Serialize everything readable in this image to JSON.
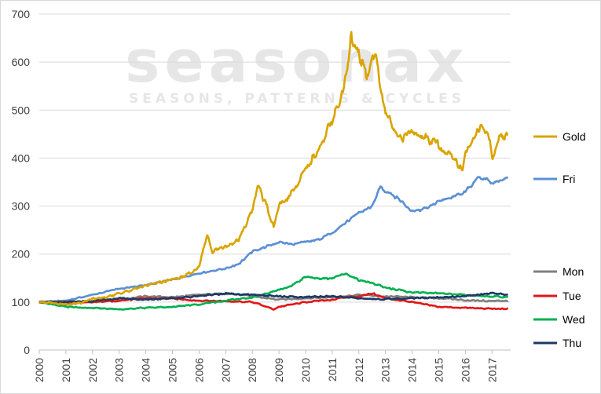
{
  "watermark": {
    "brand": "seasonax",
    "tagline": "SEASONS, PATTERNS & CYCLES"
  },
  "chart_data": {
    "type": "line",
    "title": "",
    "xlabel": "",
    "ylabel": "",
    "ylim": [
      0,
      700
    ],
    "yticks": [
      0,
      100,
      200,
      300,
      400,
      500,
      600,
      700
    ],
    "xlim": [
      2000,
      2017.7
    ],
    "xticks": [
      "2000",
      "2001",
      "2002",
      "2003",
      "2004",
      "2005",
      "2006",
      "2007",
      "2008",
      "2009",
      "2010",
      "2011",
      "2012",
      "2013",
      "2014",
      "2015",
      "2016",
      "2017"
    ],
    "grid": "horizontal",
    "legend": "right",
    "series": [
      {
        "name": "Gold",
        "color": "#d9a400",
        "x": [
          2000,
          2000.5,
          2001,
          2001.5,
          2002,
          2002.5,
          2003,
          2003.5,
          2004,
          2004.5,
          2005,
          2005.5,
          2006,
          2006.3,
          2006.5,
          2007,
          2007.5,
          2008,
          2008.2,
          2008.5,
          2008.8,
          2009,
          2009.5,
          2010,
          2010.5,
          2011,
          2011.3,
          2011.6,
          2011.7,
          2012,
          2012.3,
          2012.6,
          2012.8,
          2013,
          2013.3,
          2013.5,
          2014,
          2014.5,
          2015,
          2015.5,
          2015.9,
          2016,
          2016.3,
          2016.6,
          2016.9,
          2017,
          2017.3,
          2017.6
        ],
        "values": [
          100,
          98,
          95,
          97,
          107,
          110,
          118,
          125,
          135,
          140,
          148,
          155,
          172,
          242,
          205,
          215,
          230,
          290,
          340,
          305,
          255,
          300,
          330,
          380,
          420,
          480,
          520,
          600,
          655,
          610,
          575,
          620,
          550,
          500,
          460,
          440,
          450,
          440,
          430,
          405,
          370,
          405,
          440,
          470,
          440,
          400,
          440,
          448
        ]
      },
      {
        "name": "Fri",
        "color": "#5b8fd4",
        "x": [
          2000,
          2001,
          2002,
          2003,
          2004,
          2005,
          2006,
          2006.5,
          2007,
          2007.5,
          2008,
          2008.5,
          2009,
          2009.5,
          2010,
          2010.5,
          2011,
          2011.5,
          2012,
          2012.5,
          2012.8,
          2013,
          2013.5,
          2014,
          2014.5,
          2015,
          2015.5,
          2016,
          2016.5,
          2016.8,
          2017,
          2017.6
        ],
        "values": [
          100,
          103,
          115,
          128,
          135,
          147,
          160,
          165,
          170,
          180,
          205,
          215,
          225,
          220,
          225,
          230,
          245,
          265,
          285,
          300,
          340,
          330,
          315,
          290,
          295,
          310,
          320,
          330,
          360,
          355,
          348,
          358
        ]
      },
      {
        "name": "Mon",
        "color": "#808080",
        "x": [
          2000,
          2001,
          2002,
          2003,
          2004,
          2005,
          2006,
          2007,
          2008,
          2009,
          2010,
          2011,
          2012,
          2013,
          2014,
          2015,
          2016,
          2017,
          2017.6
        ],
        "values": [
          100,
          102,
          100,
          105,
          112,
          110,
          115,
          118,
          112,
          105,
          108,
          110,
          115,
          112,
          110,
          108,
          104,
          102,
          103
        ]
      },
      {
        "name": "Tue",
        "color": "#e01818",
        "x": [
          2000,
          2001,
          2002,
          2003,
          2004,
          2005,
          2006,
          2007,
          2008,
          2008.8,
          2009,
          2010,
          2011,
          2011.5,
          2012,
          2012.5,
          2013,
          2014,
          2015,
          2016,
          2017,
          2017.6
        ],
        "values": [
          100,
          96,
          100,
          103,
          108,
          107,
          103,
          102,
          100,
          85,
          90,
          100,
          105,
          110,
          112,
          118,
          108,
          100,
          90,
          88,
          86,
          86
        ]
      },
      {
        "name": "Wed",
        "color": "#00b050",
        "x": [
          2000,
          2001,
          2002,
          2003,
          2004,
          2005,
          2006,
          2007,
          2008,
          2009,
          2009.5,
          2010,
          2010.5,
          2011,
          2011.5,
          2012,
          2012.5,
          2013,
          2013.5,
          2014,
          2015,
          2016,
          2017,
          2017.6
        ],
        "values": [
          100,
          90,
          88,
          85,
          88,
          90,
          95,
          103,
          110,
          125,
          135,
          152,
          148,
          150,
          160,
          145,
          140,
          130,
          125,
          120,
          118,
          115,
          112,
          110
        ]
      },
      {
        "name": "Thu",
        "color": "#1f3864",
        "x": [
          2000,
          2001,
          2002,
          2003,
          2004,
          2005,
          2006,
          2006.5,
          2007,
          2008,
          2009,
          2010,
          2011,
          2012,
          2013,
          2014,
          2015,
          2016,
          2016.5,
          2017,
          2017.6
        ],
        "values": [
          100,
          100,
          102,
          108,
          105,
          108,
          112,
          115,
          118,
          115,
          112,
          110,
          112,
          108,
          106,
          108,
          110,
          112,
          115,
          118,
          116
        ]
      }
    ]
  }
}
